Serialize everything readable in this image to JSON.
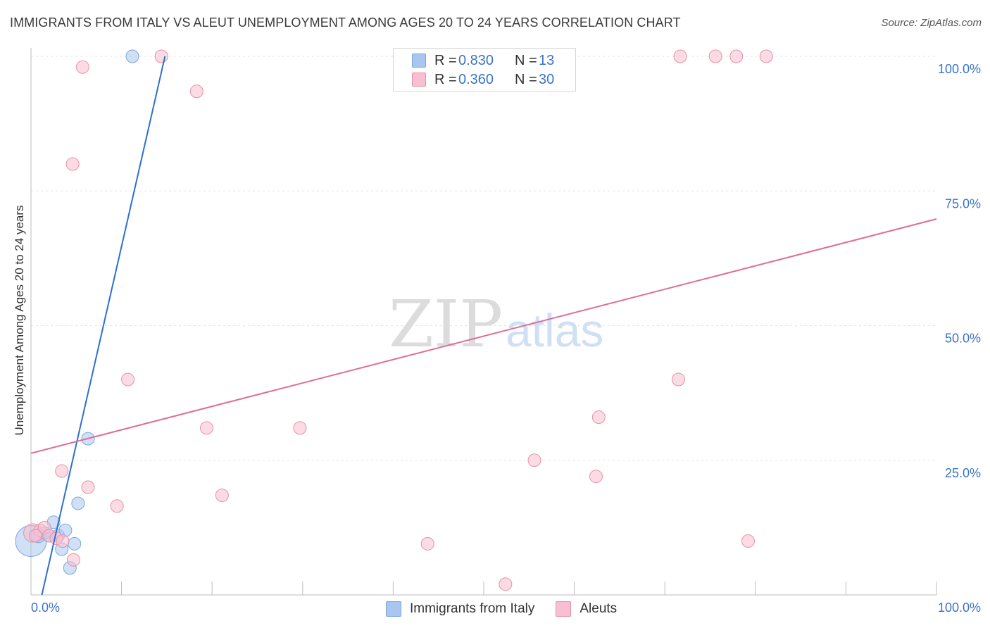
{
  "title": "IMMIGRANTS FROM ITALY VS ALEUT UNEMPLOYMENT AMONG AGES 20 TO 24 YEARS CORRELATION CHART",
  "source": "Source: ZipAtlas.com",
  "watermark": {
    "zip": "ZIP",
    "atlas": "atlas"
  },
  "stats": [
    {
      "r_label": "R =",
      "r_value": "0.830",
      "n_label": "N =",
      "n_value": "13",
      "color": "#a8c6f0",
      "border": "#7aa6e0"
    },
    {
      "r_label": "R =",
      "r_value": "0.360",
      "n_label": "N =",
      "n_value": "30",
      "color": "#f8bfd0",
      "border": "#e98fab"
    }
  ],
  "legend": [
    {
      "label": "Immigrants from Italy",
      "color": "#a8c6f0",
      "border": "#7aa6e0"
    },
    {
      "label": "Aleuts",
      "color": "#f8bfd0",
      "border": "#e98fab"
    }
  ],
  "chart_data": {
    "type": "scatter",
    "title": "IMMIGRANTS FROM ITALY VS ALEUT UNEMPLOYMENT AMONG AGES 20 TO 24 YEARS CORRELATION CHART",
    "xlabel": "",
    "ylabel": "Unemployment Among Ages 20 to 24 years",
    "xlim": [
      0,
      100
    ],
    "ylim": [
      0,
      100
    ],
    "x_tick_labels": [
      {
        "value": 0,
        "label": "0.0%"
      },
      {
        "value": 100,
        "label": "100.0%"
      }
    ],
    "y_tick_labels": [
      {
        "value": 25,
        "label": "25.0%"
      },
      {
        "value": 50,
        "label": "50.0%"
      },
      {
        "value": 75,
        "label": "75.0%"
      },
      {
        "value": 100,
        "label": "100.0%"
      }
    ],
    "series": [
      {
        "name": "Immigrants from Italy",
        "color": "#a8c6f0",
        "stroke": "#7aa6e0",
        "line_color": "#2e6fcf",
        "points": [
          {
            "x": 0.0,
            "y": 10.0,
            "size": 22
          },
          {
            "x": 0.8,
            "y": 11.0,
            "size": 10
          },
          {
            "x": 1.5,
            "y": 11.5,
            "size": 9
          },
          {
            "x": 2.0,
            "y": 11.0,
            "size": 9
          },
          {
            "x": 2.5,
            "y": 13.5,
            "size": 9
          },
          {
            "x": 3.0,
            "y": 11.0,
            "size": 9
          },
          {
            "x": 3.4,
            "y": 8.5,
            "size": 9
          },
          {
            "x": 3.8,
            "y": 12.0,
            "size": 9
          },
          {
            "x": 4.3,
            "y": 5.0,
            "size": 9
          },
          {
            "x": 4.8,
            "y": 9.5,
            "size": 9
          },
          {
            "x": 5.2,
            "y": 17.0,
            "size": 9
          },
          {
            "x": 6.3,
            "y": 29.0,
            "size": 9
          },
          {
            "x": 11.2,
            "y": 100.0,
            "size": 9
          }
        ],
        "trendline": {
          "x1": 1.2,
          "y1": 0.0,
          "x2": 14.8,
          "y2": 100.0
        }
      },
      {
        "name": "Aleuts",
        "color": "#f8bfd0",
        "stroke": "#e98fab",
        "line_color": "#e06c96",
        "points": [
          {
            "x": 0.2,
            "y": 11.5,
            "size": 13
          },
          {
            "x": 1.0,
            "y": 12.0,
            "size": 9
          },
          {
            "x": 1.5,
            "y": 12.5,
            "size": 9
          },
          {
            "x": 2.0,
            "y": 11.0,
            "size": 9
          },
          {
            "x": 2.8,
            "y": 10.5,
            "size": 9
          },
          {
            "x": 3.5,
            "y": 10.0,
            "size": 9
          },
          {
            "x": 3.4,
            "y": 23.0,
            "size": 9
          },
          {
            "x": 4.6,
            "y": 80.0,
            "size": 9
          },
          {
            "x": 4.7,
            "y": 6.5,
            "size": 9
          },
          {
            "x": 5.7,
            "y": 98.0,
            "size": 9
          },
          {
            "x": 6.3,
            "y": 20.0,
            "size": 9
          },
          {
            "x": 9.5,
            "y": 16.5,
            "size": 9
          },
          {
            "x": 10.7,
            "y": 40.0,
            "size": 9
          },
          {
            "x": 14.4,
            "y": 100.0,
            "size": 9
          },
          {
            "x": 18.3,
            "y": 93.5,
            "size": 9
          },
          {
            "x": 19.4,
            "y": 31.0,
            "size": 9
          },
          {
            "x": 21.1,
            "y": 18.5,
            "size": 9
          },
          {
            "x": 29.7,
            "y": 31.0,
            "size": 9
          },
          {
            "x": 43.8,
            "y": 9.5,
            "size": 9
          },
          {
            "x": 52.4,
            "y": 2.0,
            "size": 9
          },
          {
            "x": 55.6,
            "y": 25.0,
            "size": 9
          },
          {
            "x": 62.4,
            "y": 22.0,
            "size": 9
          },
          {
            "x": 62.7,
            "y": 33.0,
            "size": 9
          },
          {
            "x": 71.5,
            "y": 40.0,
            "size": 9
          },
          {
            "x": 71.7,
            "y": 100.0,
            "size": 9
          },
          {
            "x": 75.6,
            "y": 100.0,
            "size": 9
          },
          {
            "x": 77.9,
            "y": 100.0,
            "size": 9
          },
          {
            "x": 79.2,
            "y": 10.0,
            "size": 9
          },
          {
            "x": 81.2,
            "y": 100.0,
            "size": 9
          },
          {
            "x": 0.5,
            "y": 11.0,
            "size": 9
          }
        ],
        "trendline": {
          "x1": 0.0,
          "y1": 26.3,
          "x2": 100.0,
          "y2": 69.8
        }
      }
    ]
  }
}
